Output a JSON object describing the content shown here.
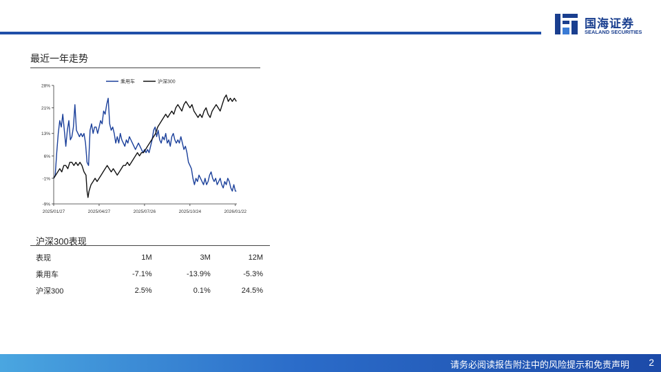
{
  "brand": {
    "name_cn": "国海证券",
    "name_en": "SEALAND SECURITIES",
    "accent": "#1f4fa8"
  },
  "section_title": "最近一年走势",
  "chart_data": {
    "type": "line",
    "title": "",
    "xlabel": "",
    "ylabel": "",
    "y_ticks": [
      "28%",
      "21%",
      "13%",
      "6%",
      "-1%",
      "-9%"
    ],
    "y_tick_values": [
      28,
      21,
      13,
      6,
      -1,
      -9
    ],
    "ylim": [
      -9,
      28
    ],
    "x_ticks": [
      "2025/01/27",
      "2025/04/27",
      "2025/07/26",
      "2025/10/24",
      "2026/01/22"
    ],
    "x_tick_values": [
      0,
      90,
      180,
      270,
      360
    ],
    "xlim": [
      0,
      363
    ],
    "grid": false,
    "legend_position": "top",
    "series": [
      {
        "name": "乘用车",
        "color": "#1a3f9a",
        "points": [
          [
            0,
            -1
          ],
          [
            3,
            0
          ],
          [
            6,
            7
          ],
          [
            9,
            13
          ],
          [
            12,
            17
          ],
          [
            15,
            15
          ],
          [
            18,
            19
          ],
          [
            21,
            14
          ],
          [
            24,
            9
          ],
          [
            27,
            14
          ],
          [
            30,
            17
          ],
          [
            33,
            11
          ],
          [
            36,
            12
          ],
          [
            39,
            15
          ],
          [
            42,
            22
          ],
          [
            45,
            14
          ],
          [
            48,
            13
          ],
          [
            51,
            12
          ],
          [
            54,
            13
          ],
          [
            57,
            12
          ],
          [
            60,
            13
          ],
          [
            63,
            10
          ],
          [
            66,
            4
          ],
          [
            69,
            3
          ],
          [
            72,
            14
          ],
          [
            75,
            16
          ],
          [
            78,
            13
          ],
          [
            81,
            15
          ],
          [
            84,
            15
          ],
          [
            87,
            13
          ],
          [
            90,
            15
          ],
          [
            93,
            17
          ],
          [
            96,
            16
          ],
          [
            99,
            20
          ],
          [
            102,
            19
          ],
          [
            105,
            22
          ],
          [
            108,
            24
          ],
          [
            111,
            16
          ],
          [
            114,
            14
          ],
          [
            117,
            15
          ],
          [
            120,
            13
          ],
          [
            123,
            10
          ],
          [
            126,
            12
          ],
          [
            129,
            10
          ],
          [
            132,
            13
          ],
          [
            135,
            11
          ],
          [
            138,
            10
          ],
          [
            141,
            9
          ],
          [
            144,
            11
          ],
          [
            147,
            10
          ],
          [
            150,
            12
          ],
          [
            153,
            11
          ],
          [
            156,
            10
          ],
          [
            159,
            9
          ],
          [
            162,
            8
          ],
          [
            165,
            9
          ],
          [
            168,
            10
          ],
          [
            171,
            9
          ],
          [
            174,
            8
          ],
          [
            177,
            7
          ],
          [
            180,
            8
          ],
          [
            183,
            7
          ],
          [
            186,
            8
          ],
          [
            189,
            7
          ],
          [
            192,
            9
          ],
          [
            195,
            11
          ],
          [
            198,
            14
          ],
          [
            201,
            15
          ],
          [
            204,
            12
          ],
          [
            207,
            14
          ],
          [
            210,
            11
          ],
          [
            213,
            10
          ],
          [
            216,
            12
          ],
          [
            219,
            11
          ],
          [
            222,
            13
          ],
          [
            225,
            10
          ],
          [
            228,
            11
          ],
          [
            231,
            9
          ],
          [
            234,
            12
          ],
          [
            237,
            13
          ],
          [
            240,
            11
          ],
          [
            243,
            10
          ],
          [
            246,
            11
          ],
          [
            249,
            10
          ],
          [
            252,
            12
          ],
          [
            255,
            10
          ],
          [
            258,
            8
          ],
          [
            261,
            9
          ],
          [
            264,
            7
          ],
          [
            267,
            4
          ],
          [
            270,
            3
          ],
          [
            273,
            2
          ],
          [
            276,
            -1
          ],
          [
            279,
            -3
          ],
          [
            282,
            -1
          ],
          [
            285,
            -2
          ],
          [
            288,
            0
          ],
          [
            291,
            -1
          ],
          [
            294,
            -2
          ],
          [
            297,
            -3
          ],
          [
            300,
            -1
          ],
          [
            303,
            -3
          ],
          [
            306,
            -2
          ],
          [
            309,
            0
          ],
          [
            312,
            1
          ],
          [
            315,
            -1
          ],
          [
            318,
            -2
          ],
          [
            321,
            -1
          ],
          [
            324,
            -3
          ],
          [
            327,
            -2
          ],
          [
            330,
            -1
          ],
          [
            333,
            -3
          ],
          [
            336,
            -4
          ],
          [
            339,
            -2
          ],
          [
            342,
            -3
          ],
          [
            345,
            -1
          ],
          [
            348,
            -2
          ],
          [
            351,
            -4
          ],
          [
            354,
            -5
          ],
          [
            357,
            -3
          ],
          [
            360,
            -5
          ],
          [
            362,
            -5
          ]
        ]
      },
      {
        "name": "沪深300",
        "color": "#111111",
        "points": [
          [
            0,
            -1
          ],
          [
            4,
            0
          ],
          [
            8,
            1
          ],
          [
            12,
            2
          ],
          [
            16,
            1
          ],
          [
            20,
            3
          ],
          [
            24,
            3
          ],
          [
            28,
            2
          ],
          [
            32,
            4
          ],
          [
            36,
            4
          ],
          [
            40,
            3
          ],
          [
            44,
            4
          ],
          [
            48,
            3
          ],
          [
            52,
            4
          ],
          [
            56,
            3
          ],
          [
            60,
            1
          ],
          [
            64,
            0
          ],
          [
            66,
            -5
          ],
          [
            68,
            -7
          ],
          [
            70,
            -5
          ],
          [
            74,
            -3
          ],
          [
            78,
            -2
          ],
          [
            82,
            -1
          ],
          [
            86,
            -2
          ],
          [
            90,
            -1
          ],
          [
            94,
            0
          ],
          [
            98,
            1
          ],
          [
            102,
            2
          ],
          [
            106,
            3
          ],
          [
            110,
            2
          ],
          [
            114,
            1
          ],
          [
            118,
            2
          ],
          [
            122,
            1
          ],
          [
            126,
            0
          ],
          [
            130,
            1
          ],
          [
            134,
            2
          ],
          [
            138,
            3
          ],
          [
            142,
            3
          ],
          [
            146,
            4
          ],
          [
            150,
            3
          ],
          [
            154,
            4
          ],
          [
            158,
            5
          ],
          [
            162,
            6
          ],
          [
            166,
            7
          ],
          [
            170,
            6
          ],
          [
            174,
            7
          ],
          [
            178,
            7
          ],
          [
            182,
            8
          ],
          [
            186,
            9
          ],
          [
            190,
            10
          ],
          [
            194,
            11
          ],
          [
            198,
            12
          ],
          [
            202,
            13
          ],
          [
            206,
            15
          ],
          [
            210,
            16
          ],
          [
            214,
            17
          ],
          [
            218,
            18
          ],
          [
            222,
            19
          ],
          [
            226,
            18
          ],
          [
            230,
            19
          ],
          [
            234,
            20
          ],
          [
            238,
            19
          ],
          [
            242,
            21
          ],
          [
            246,
            22
          ],
          [
            250,
            21
          ],
          [
            254,
            20
          ],
          [
            258,
            22
          ],
          [
            262,
            23
          ],
          [
            266,
            22
          ],
          [
            270,
            21
          ],
          [
            274,
            22
          ],
          [
            278,
            20
          ],
          [
            282,
            19
          ],
          [
            286,
            18
          ],
          [
            290,
            19
          ],
          [
            294,
            18
          ],
          [
            298,
            20
          ],
          [
            302,
            21
          ],
          [
            306,
            19
          ],
          [
            310,
            18
          ],
          [
            314,
            20
          ],
          [
            318,
            21
          ],
          [
            322,
            22
          ],
          [
            326,
            21
          ],
          [
            330,
            20
          ],
          [
            334,
            22
          ],
          [
            338,
            24
          ],
          [
            342,
            25
          ],
          [
            346,
            23
          ],
          [
            350,
            24
          ],
          [
            354,
            23
          ],
          [
            358,
            24
          ],
          [
            362,
            23
          ]
        ]
      }
    ]
  },
  "performance": {
    "title": "沪深300表现",
    "headers": [
      "表现",
      "1M",
      "3M",
      "12M"
    ],
    "rows": [
      {
        "name": "乘用车",
        "m1": "-7.1%",
        "m3": "-13.9%",
        "m12": "-5.3%"
      },
      {
        "name": "沪深300",
        "m1": "2.5%",
        "m3": "0.1%",
        "m12": "24.5%"
      }
    ]
  },
  "footer": {
    "disclaimer": "请务必阅读报告附注中的风险提示和免责声明",
    "page": "2"
  }
}
